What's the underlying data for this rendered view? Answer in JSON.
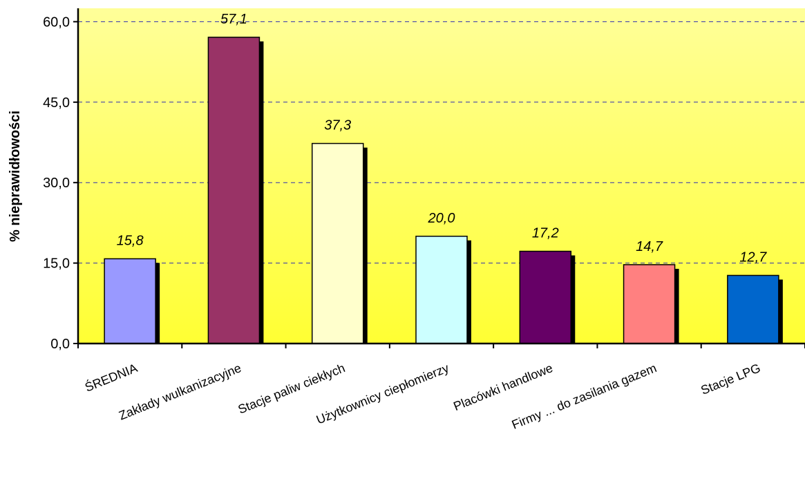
{
  "chart_data": {
    "type": "bar",
    "title": "",
    "xlabel": "",
    "ylabel": "% nieprawidłowości",
    "ylim": [
      0,
      62.5
    ],
    "yticks": [
      "0,0",
      "15,0",
      "30,0",
      "45,0",
      "60,0"
    ],
    "ytick_values": [
      0,
      15,
      30,
      45,
      60
    ],
    "grid": "horizontal dashed",
    "background": "yellow gradient",
    "categories": [
      "ŚREDNIA",
      "Zakłady wulkanizacyjne",
      "Stacje paliw ciekłych",
      "Użytkownicy ciepłomierzy",
      "Placówki handlowe",
      "Firmy ... do zasilania gazem",
      "Stacje LPG"
    ],
    "values": [
      15.8,
      57.1,
      37.3,
      20.0,
      17.2,
      14.7,
      12.7
    ],
    "value_labels": [
      "15,8",
      "57,1",
      "37,3",
      "20,0",
      "17,2",
      "14,7",
      "12,7"
    ],
    "colors": [
      "#9999ff",
      "#993366",
      "#ffffcc",
      "#ccffff",
      "#660066",
      "#ff8080",
      "#0066cc"
    ],
    "grid_color": "#2b2bb0",
    "plot_gradient": [
      "#ffff99",
      "#ffff33"
    ]
  }
}
